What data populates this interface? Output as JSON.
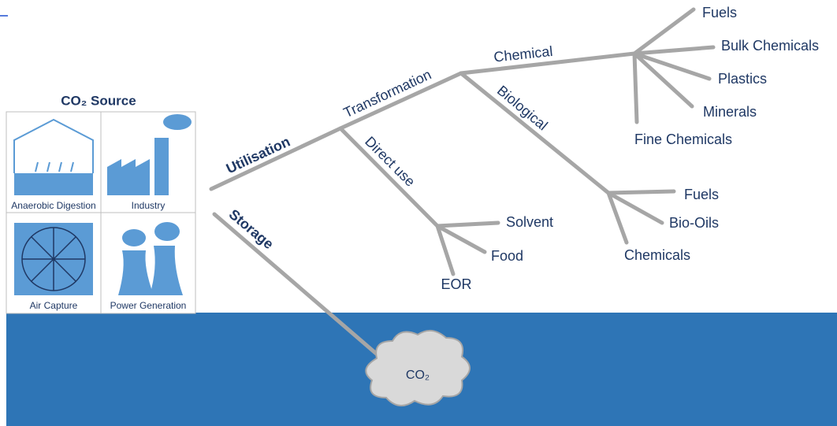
{
  "source": {
    "title": "CO₂ Source",
    "tiles": [
      "Anaerobic Digestion",
      "Industry",
      "Air Capture",
      "Power Generation"
    ]
  },
  "branches": {
    "utilisation": "Utilisation",
    "storage": "Storage",
    "transformation": "Transformation",
    "direct_use": "Direct use",
    "chemical": "Chemical",
    "biological": "Biological"
  },
  "chemical_products": [
    "Fuels",
    "Bulk Chemicals",
    "Plastics",
    "Minerals",
    "Fine Chemicals"
  ],
  "biological_products": [
    "Fuels",
    "Bio-Oils",
    "Chemicals"
  ],
  "direct_use_products": [
    "Solvent",
    "Food",
    "EOR"
  ],
  "storage_cloud": "CO₂"
}
